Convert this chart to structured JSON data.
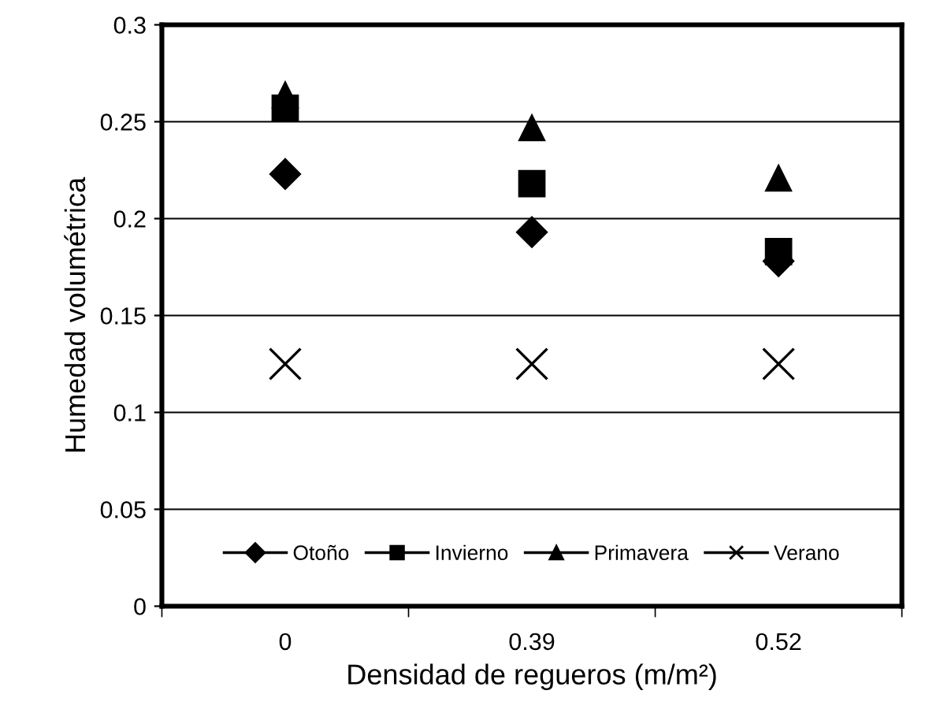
{
  "chart_data": {
    "type": "scatter",
    "xlabel": "Densidad de regueros (m/m²)",
    "ylabel": "Humedad volumétrica",
    "categories": [
      "0",
      "0.39",
      "0.52"
    ],
    "ylim": [
      0,
      0.3
    ],
    "yticks": [
      0,
      0.05,
      0.1,
      0.15,
      0.2,
      0.25,
      0.3
    ],
    "grid": "y",
    "legend": "bottom",
    "series": [
      {
        "name": "Otoño",
        "color": "#000000",
        "marker": "diamond",
        "values": [
          0.223,
          0.193,
          0.178
        ]
      },
      {
        "name": "Invierno",
        "color": "#000000",
        "marker": "square",
        "values": [
          0.257,
          0.218,
          0.183
        ]
      },
      {
        "name": "Primavera",
        "color": "#000000",
        "marker": "triangle",
        "values": [
          0.264,
          0.247,
          0.221
        ]
      },
      {
        "name": "Verano",
        "color": "#000000",
        "marker": "cross",
        "values": [
          0.125,
          0.125,
          0.125
        ]
      }
    ]
  }
}
